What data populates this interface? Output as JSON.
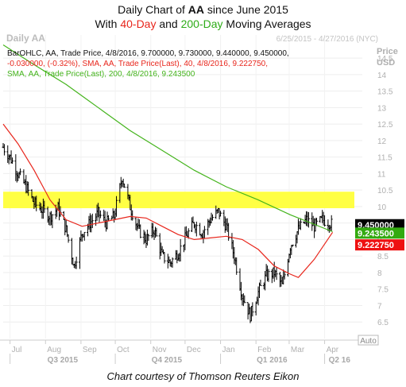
{
  "title": {
    "line1_prefix": "Daily Chart of ",
    "line1_ticker": "AA",
    "line1_suffix": " since June 2015",
    "line2_prefix": "With ",
    "line2_ma1": "40-Day",
    "line2_mid": " and ",
    "line2_ma2": "200-Day",
    "line2_suffix": " Moving Averages"
  },
  "caption": "Chart courtesy of Thomson Reuters Eikon",
  "chart_data": {
    "type": "line",
    "header_left": "Daily AA",
    "header_right": "6/25/2015 - 4/27/2016 (NYC)",
    "legend_ohlc_line1": "BarOHLC, AA, Trade Price, 4/8/2016, 9.700000, 9.730000, 9.440000, 9.450000,",
    "legend_ohlc_line2": "-0.030000, (-0.32%), SMA, AA, Trade Price(Last), 40, 4/8/2016, 9.222750,",
    "legend_sma200": "SMA, AA, Trade Price(Last), 200, 4/8/2016, 9.243500",
    "y_axis_label_line1": "Price",
    "y_axis_label_line2": "USD",
    "ylim": [
      6.0,
      15.2
    ],
    "y_ticks": [
      "6.5",
      "7",
      "7.5",
      "8",
      "8.5",
      "9",
      "9.5",
      "10",
      "10.5",
      "11",
      "11.5",
      "12",
      "12.5",
      "13",
      "13.5",
      "14",
      "14.5"
    ],
    "x_months": [
      "Jul",
      "Aug",
      "Sep",
      "Oct",
      "Nov",
      "Dec",
      "Jan",
      "Feb",
      "Mar",
      "Apr"
    ],
    "quarters": [
      "Q3 2015",
      "Q4 2015",
      "Q1 2016",
      "Q2 16"
    ],
    "auto_label": "Auto",
    "resistance_band": [
      9.95,
      10.45
    ],
    "price_labels": {
      "close": "9.450000",
      "sma200": "9.243500",
      "sma40": "9.222750"
    },
    "colors": {
      "bars": "#000000",
      "sma40": "#e8261c",
      "sma200": "#44b41c",
      "band": "#ffff44",
      "close_tag": "#000000",
      "sma200_tag": "#33aa10",
      "sma40_tag": "#ee1111"
    },
    "price_series": [
      {
        "d": "2015-06-25",
        "v": 11.8
      },
      {
        "d": "2015-07-01",
        "v": 11.5
      },
      {
        "d": "2015-07-08",
        "v": 11.0
      },
      {
        "d": "2015-07-15",
        "v": 10.6
      },
      {
        "d": "2015-07-22",
        "v": 10.1
      },
      {
        "d": "2015-07-29",
        "v": 9.9
      },
      {
        "d": "2015-08-05",
        "v": 9.7
      },
      {
        "d": "2015-08-12",
        "v": 9.95
      },
      {
        "d": "2015-08-19",
        "v": 9.3
      },
      {
        "d": "2015-08-26",
        "v": 8.2
      },
      {
        "d": "2015-09-02",
        "v": 9.2
      },
      {
        "d": "2015-09-09",
        "v": 9.5
      },
      {
        "d": "2015-09-16",
        "v": 9.8
      },
      {
        "d": "2015-09-23",
        "v": 9.5
      },
      {
        "d": "2015-09-30",
        "v": 9.7
      },
      {
        "d": "2015-10-07",
        "v": 10.9
      },
      {
        "d": "2015-10-14",
        "v": 10.0
      },
      {
        "d": "2015-10-21",
        "v": 9.3
      },
      {
        "d": "2015-10-28",
        "v": 9.0
      },
      {
        "d": "2015-11-04",
        "v": 9.3
      },
      {
        "d": "2015-11-11",
        "v": 8.5
      },
      {
        "d": "2015-11-18",
        "v": 8.3
      },
      {
        "d": "2015-11-25",
        "v": 8.6
      },
      {
        "d": "2015-12-02",
        "v": 9.1
      },
      {
        "d": "2015-12-09",
        "v": 9.5
      },
      {
        "d": "2015-12-16",
        "v": 9.2
      },
      {
        "d": "2015-12-23",
        "v": 9.6
      },
      {
        "d": "2015-12-30",
        "v": 9.85
      },
      {
        "d": "2016-01-06",
        "v": 9.4
      },
      {
        "d": "2016-01-13",
        "v": 8.5
      },
      {
        "d": "2016-01-20",
        "v": 7.3
      },
      {
        "d": "2016-01-27",
        "v": 6.7
      },
      {
        "d": "2016-02-03",
        "v": 7.4
      },
      {
        "d": "2016-02-10",
        "v": 7.9
      },
      {
        "d": "2016-02-17",
        "v": 8.0
      },
      {
        "d": "2016-02-24",
        "v": 7.6
      },
      {
        "d": "2016-03-02",
        "v": 8.8
      },
      {
        "d": "2016-03-09",
        "v": 9.3
      },
      {
        "d": "2016-03-16",
        "v": 9.6
      },
      {
        "d": "2016-03-23",
        "v": 9.4
      },
      {
        "d": "2016-03-30",
        "v": 9.6
      },
      {
        "d": "2016-04-06",
        "v": 9.5
      },
      {
        "d": "2016-04-08",
        "v": 9.45
      }
    ],
    "sma40_series": [
      {
        "d": "2015-06-25",
        "v": 12.5
      },
      {
        "d": "2015-07-08",
        "v": 11.9
      },
      {
        "d": "2015-07-22",
        "v": 11.1
      },
      {
        "d": "2015-08-05",
        "v": 10.2
      },
      {
        "d": "2015-08-19",
        "v": 9.6
      },
      {
        "d": "2015-09-02",
        "v": 9.4
      },
      {
        "d": "2015-09-16",
        "v": 9.5
      },
      {
        "d": "2015-09-30",
        "v": 9.6
      },
      {
        "d": "2015-10-14",
        "v": 9.7
      },
      {
        "d": "2015-10-28",
        "v": 9.65
      },
      {
        "d": "2015-11-11",
        "v": 9.4
      },
      {
        "d": "2015-11-25",
        "v": 9.15
      },
      {
        "d": "2015-12-09",
        "v": 9.0
      },
      {
        "d": "2015-12-23",
        "v": 9.05
      },
      {
        "d": "2016-01-06",
        "v": 9.1
      },
      {
        "d": "2016-01-20",
        "v": 9.0
      },
      {
        "d": "2016-02-03",
        "v": 8.7
      },
      {
        "d": "2016-02-17",
        "v": 8.2
      },
      {
        "d": "2016-03-02",
        "v": 7.95
      },
      {
        "d": "2016-03-09",
        "v": 7.85
      },
      {
        "d": "2016-03-23",
        "v": 8.4
      },
      {
        "d": "2016-04-08",
        "v": 9.22
      }
    ],
    "sma200_series": [
      {
        "d": "2015-06-25",
        "v": 14.9
      },
      {
        "d": "2015-07-22",
        "v": 14.3
      },
      {
        "d": "2015-08-19",
        "v": 13.7
      },
      {
        "d": "2015-09-16",
        "v": 13.0
      },
      {
        "d": "2015-10-14",
        "v": 12.3
      },
      {
        "d": "2015-11-11",
        "v": 11.7
      },
      {
        "d": "2015-12-09",
        "v": 11.1
      },
      {
        "d": "2016-01-06",
        "v": 10.6
      },
      {
        "d": "2016-02-03",
        "v": 10.2
      },
      {
        "d": "2016-03-02",
        "v": 9.75
      },
      {
        "d": "2016-04-08",
        "v": 9.24
      }
    ]
  }
}
